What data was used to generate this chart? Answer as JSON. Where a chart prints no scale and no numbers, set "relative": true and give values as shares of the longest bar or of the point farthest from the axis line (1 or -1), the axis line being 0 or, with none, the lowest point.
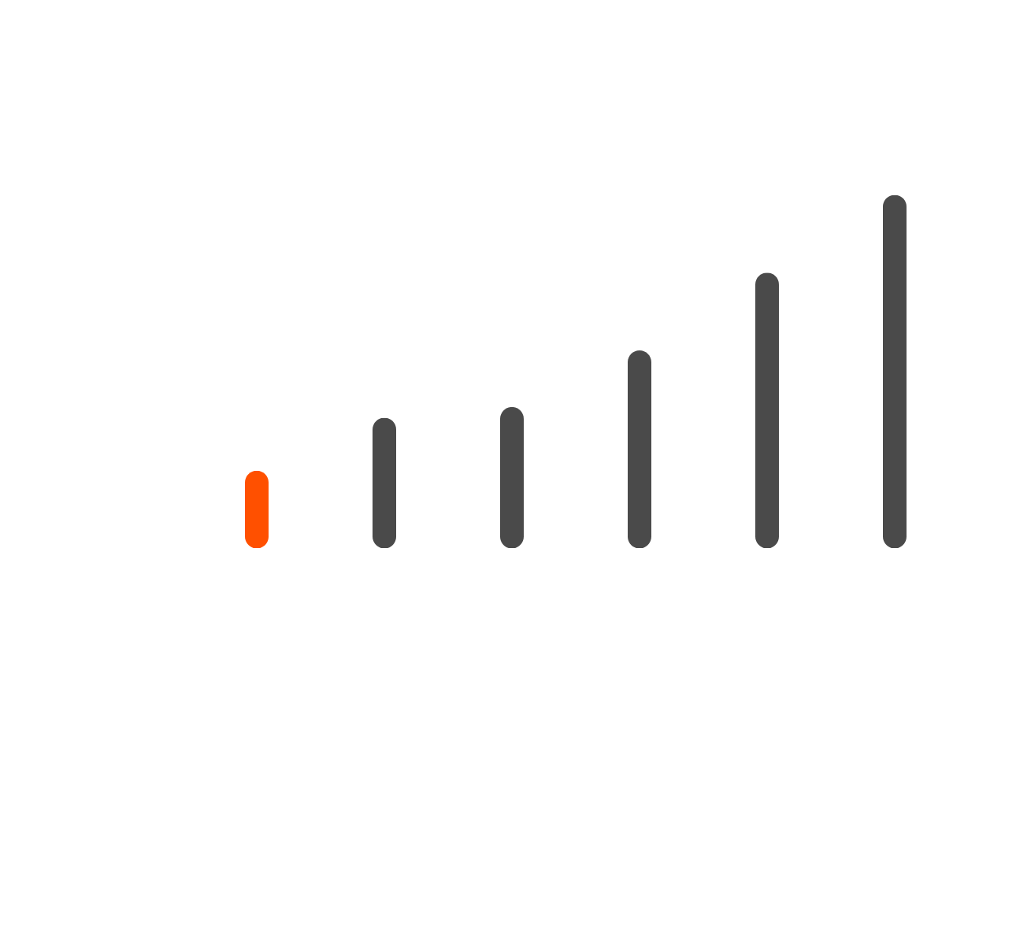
{
  "chart_data": {
    "type": "bar",
    "categories": [
      null,
      null,
      null,
      null,
      null,
      null
    ],
    "values": [
      0.22,
      0.37,
      0.4,
      0.56,
      0.78,
      1
    ],
    "colors": [
      "#ff5000",
      "#4a4a4a",
      "#4a4a4a",
      "#4a4a4a",
      "#4a4a4a",
      "#4a4a4a"
    ],
    "relative": true
  }
}
